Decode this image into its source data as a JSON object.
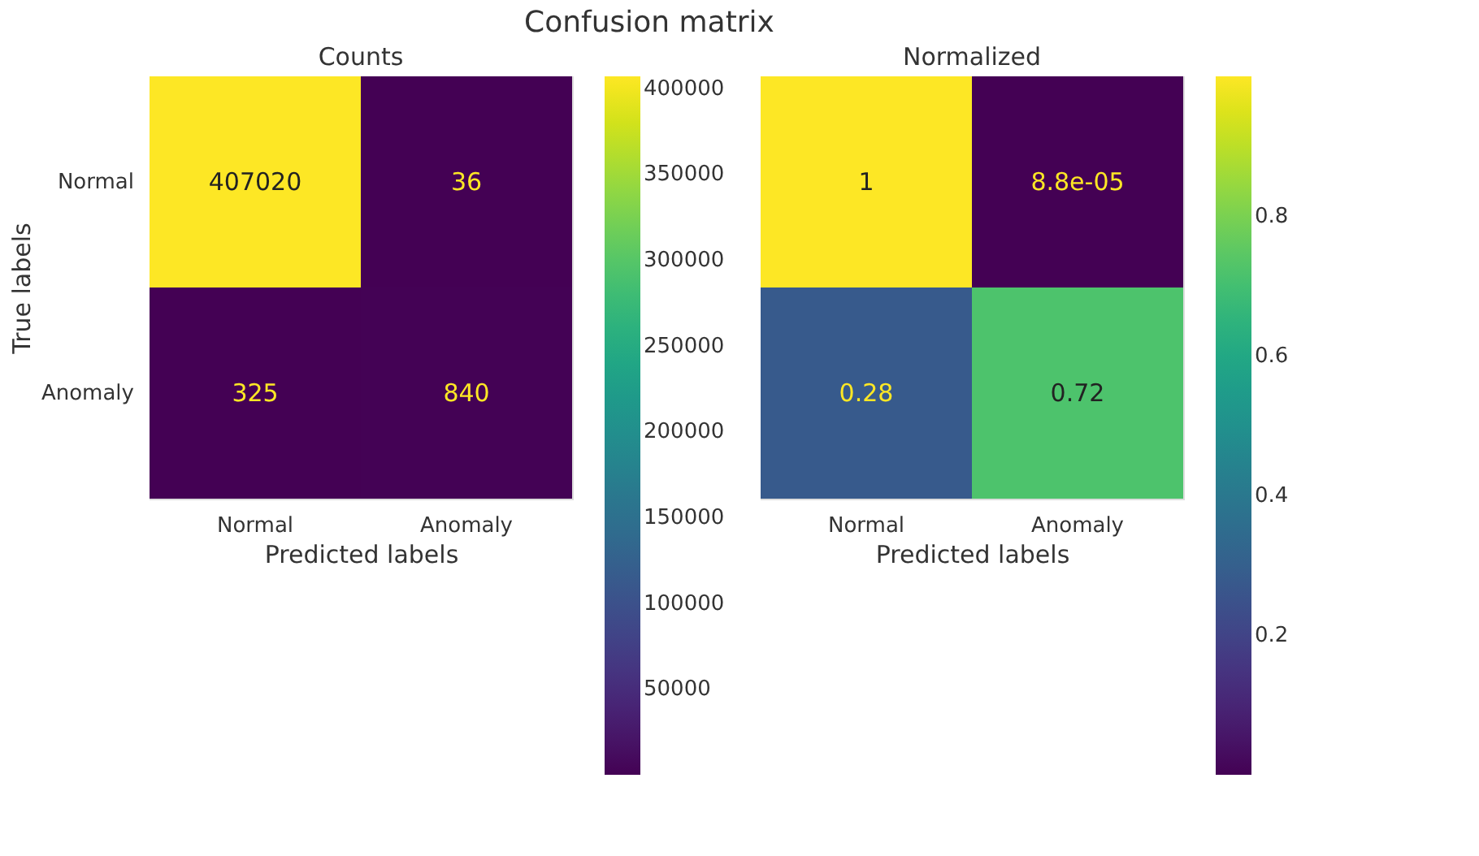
{
  "chart_data": [
    {
      "type": "heatmap",
      "title": "Counts",
      "xlabel": "Predicted labels",
      "ylabel": "True labels",
      "annotations": [
        "Confusion matrix"
      ],
      "categories": [
        "Normal",
        "Anomaly"
      ],
      "y_categories": [
        "Normal",
        "Anomaly"
      ],
      "cells": [
        [
          407020,
          36
        ],
        [
          325,
          840
        ]
      ],
      "data_labels": true,
      "clim": [
        36,
        407020
      ],
      "cticks": [
        50000,
        100000,
        150000,
        200000,
        250000,
        300000,
        350000,
        400000
      ]
    },
    {
      "type": "heatmap",
      "title": "Normalized",
      "xlabel": "Predicted labels",
      "tick_labels": "x",
      "categories": [
        "Normal",
        "Anomaly"
      ],
      "y_categories": [
        null,
        null
      ],
      "cells": [
        [
          1,
          8.8e-05
        ],
        [
          0.28,
          0.72
        ]
      ],
      "data_labels": true,
      "clim": [
        8.8e-05,
        1
      ],
      "cticks": [
        0.2,
        0.4,
        0.6,
        0.8
      ]
    }
  ]
}
